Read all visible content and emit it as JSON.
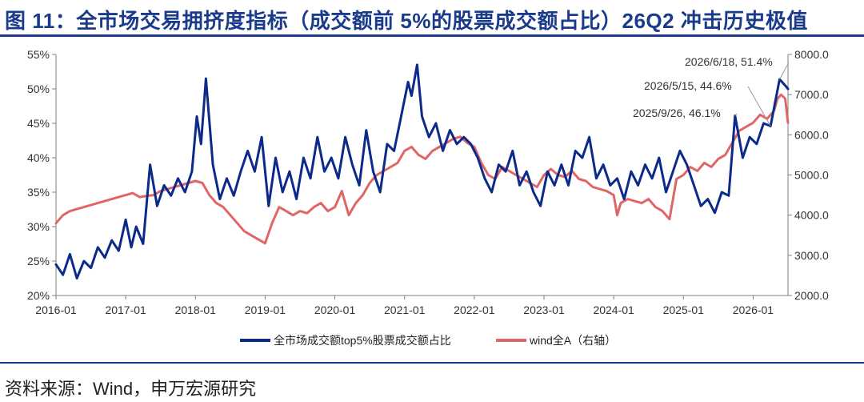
{
  "title": "图 11：全市场交易拥挤度指标（成交额前 5%的股票成交额占比）26Q2 冲击历史极值",
  "source": "资料来源：Wind，申万宏源研究",
  "colors": {
    "accent": "#1a3a8c",
    "series_top5": "#0b2a8a",
    "series_winda": "#e06666",
    "right_axis": "#5b9bd5"
  },
  "chart_data": {
    "type": "line",
    "x_ticks": [
      "2016-01",
      "2017-01",
      "2018-01",
      "2019-01",
      "2020-01",
      "2021-01",
      "2022-01",
      "2023-01",
      "2024-01",
      "2025-01",
      "2026-01"
    ],
    "y_left": {
      "ticks": [
        "20%",
        "25%",
        "30%",
        "35%",
        "40%",
        "45%",
        "50%",
        "55%"
      ],
      "range": [
        20,
        55
      ]
    },
    "y_right": {
      "ticks": [
        "2000.0",
        "3000.0",
        "4000.0",
        "5000.0",
        "6000.0",
        "7000.0",
        "8000.0"
      ],
      "range": [
        2000,
        8000
      ]
    },
    "x_range": [
      2016.0,
      2026.5
    ],
    "series": [
      {
        "name": "全市场成交额top5%股票成交额占比",
        "axis": "left",
        "x": [
          2016.0,
          2016.1,
          2016.2,
          2016.3,
          2016.4,
          2016.5,
          2016.6,
          2016.7,
          2016.8,
          2016.9,
          2017.0,
          2017.08,
          2017.15,
          2017.25,
          2017.35,
          2017.45,
          2017.55,
          2017.65,
          2017.75,
          2017.85,
          2017.95,
          2018.02,
          2018.08,
          2018.15,
          2018.25,
          2018.35,
          2018.45,
          2018.55,
          2018.65,
          2018.75,
          2018.85,
          2018.95,
          2019.05,
          2019.15,
          2019.25,
          2019.35,
          2019.45,
          2019.55,
          2019.65,
          2019.75,
          2019.85,
          2019.95,
          2020.05,
          2020.15,
          2020.25,
          2020.35,
          2020.45,
          2020.55,
          2020.65,
          2020.75,
          2020.85,
          2020.95,
          2021.05,
          2021.1,
          2021.18,
          2021.25,
          2021.35,
          2021.45,
          2021.55,
          2021.65,
          2021.75,
          2021.85,
          2021.95,
          2022.05,
          2022.15,
          2022.25,
          2022.35,
          2022.45,
          2022.55,
          2022.65,
          2022.75,
          2022.85,
          2022.95,
          2023.05,
          2023.15,
          2023.25,
          2023.35,
          2023.45,
          2023.55,
          2023.65,
          2023.75,
          2023.85,
          2023.95,
          2024.05,
          2024.15,
          2024.25,
          2024.35,
          2024.45,
          2024.55,
          2024.65,
          2024.75,
          2024.85,
          2024.95,
          2025.05,
          2025.15,
          2025.25,
          2025.35,
          2025.45,
          2025.55,
          2025.65,
          2025.74,
          2025.85,
          2025.95,
          2026.05,
          2026.15,
          2026.25,
          2026.38,
          2026.46,
          2026.5
        ],
        "y": [
          24.5,
          23.0,
          26.0,
          22.5,
          25.0,
          24.0,
          27.0,
          25.5,
          28.0,
          26.5,
          31.0,
          27.0,
          30.0,
          27.5,
          39.0,
          33.0,
          36.0,
          34.5,
          37.0,
          35.0,
          38.0,
          46.0,
          42.0,
          51.5,
          39.0,
          34.0,
          37.0,
          34.5,
          38.0,
          41.0,
          38.0,
          43.0,
          33.0,
          40.0,
          35.0,
          38.0,
          34.0,
          40.0,
          37.0,
          43.0,
          38.0,
          40.0,
          37.0,
          43.0,
          39.0,
          36.0,
          44.0,
          38.0,
          35.0,
          42.0,
          41.0,
          46.0,
          51.0,
          49.0,
          53.5,
          46.0,
          43.0,
          45.0,
          41.0,
          44.0,
          42.0,
          43.0,
          42.0,
          40.0,
          37.0,
          35.0,
          39.0,
          38.0,
          41.0,
          36.0,
          38.0,
          35.0,
          33.0,
          38.0,
          36.0,
          39.0,
          36.0,
          41.0,
          40.0,
          43.0,
          37.0,
          39.0,
          36.0,
          37.0,
          34.0,
          38.0,
          36.0,
          39.0,
          37.0,
          40.0,
          35.0,
          38.0,
          41.0,
          39.0,
          36.0,
          33.0,
          34.0,
          32.0,
          35.0,
          34.5,
          46.1,
          40.0,
          43.0,
          42.0,
          45.0,
          44.6,
          51.4,
          50.5,
          50.0
        ]
      },
      {
        "name": "wind全A（右轴）",
        "axis": "right",
        "x": [
          2016.0,
          2016.1,
          2016.2,
          2016.3,
          2016.4,
          2016.5,
          2016.6,
          2016.7,
          2016.8,
          2016.9,
          2017.0,
          2017.1,
          2017.2,
          2017.3,
          2017.4,
          2017.5,
          2017.6,
          2017.7,
          2017.8,
          2017.9,
          2018.0,
          2018.1,
          2018.2,
          2018.3,
          2018.4,
          2018.5,
          2018.6,
          2018.7,
          2018.8,
          2018.9,
          2019.0,
          2019.1,
          2019.2,
          2019.3,
          2019.4,
          2019.5,
          2019.6,
          2019.7,
          2019.8,
          2019.9,
          2020.0,
          2020.1,
          2020.2,
          2020.3,
          2020.4,
          2020.5,
          2020.6,
          2020.7,
          2020.8,
          2020.9,
          2021.0,
          2021.1,
          2021.2,
          2021.3,
          2021.4,
          2021.5,
          2021.6,
          2021.7,
          2021.8,
          2021.9,
          2022.0,
          2022.1,
          2022.2,
          2022.3,
          2022.4,
          2022.5,
          2022.6,
          2022.7,
          2022.8,
          2022.9,
          2023.0,
          2023.1,
          2023.2,
          2023.3,
          2023.4,
          2023.5,
          2023.6,
          2023.7,
          2023.8,
          2023.9,
          2024.0,
          2024.05,
          2024.1,
          2024.2,
          2024.3,
          2024.4,
          2024.5,
          2024.6,
          2024.7,
          2024.75,
          2024.8,
          2024.9,
          2025.0,
          2025.1,
          2025.2,
          2025.3,
          2025.4,
          2025.5,
          2025.6,
          2025.7,
          2025.8,
          2025.9,
          2026.0,
          2026.1,
          2026.2,
          2026.3,
          2026.35,
          2026.4,
          2026.46,
          2026.5
        ],
        "y": [
          3800,
          4000,
          4100,
          4150,
          4200,
          4250,
          4300,
          4350,
          4400,
          4450,
          4500,
          4550,
          4450,
          4480,
          4500,
          4600,
          4650,
          4700,
          4750,
          4800,
          4850,
          4800,
          4500,
          4300,
          4200,
          4000,
          3800,
          3600,
          3500,
          3400,
          3300,
          3800,
          4200,
          4100,
          4000,
          4100,
          4050,
          4200,
          4300,
          4100,
          4200,
          4600,
          4000,
          4300,
          4500,
          4800,
          5000,
          5100,
          5200,
          5300,
          5600,
          5700,
          5500,
          5400,
          5600,
          5700,
          5800,
          5900,
          5950,
          5800,
          5700,
          5300,
          5000,
          4900,
          5200,
          5100,
          5000,
          4900,
          4800,
          4700,
          5000,
          5150,
          5000,
          4950,
          5100,
          4900,
          4850,
          4700,
          4650,
          4600,
          4500,
          4000,
          4300,
          4400,
          4350,
          4300,
          4400,
          4200,
          4100,
          4000,
          3900,
          4900,
          5000,
          5200,
          5100,
          5300,
          5200,
          5400,
          5500,
          5800,
          6100,
          6200,
          6300,
          6500,
          6400,
          6600,
          6900,
          7000,
          6900,
          6300
        ]
      }
    ],
    "annotations": [
      {
        "text": "2026/6/18, 51.4%",
        "x": 2026.38,
        "y": 51.4,
        "axis": "left"
      },
      {
        "text": "2026/5/15, 44.6%",
        "x": 2026.25,
        "y": 44.6,
        "axis": "left"
      },
      {
        "text": "2025/9/26, 46.1%",
        "x": 2025.74,
        "y": 46.1,
        "axis": "left"
      }
    ],
    "grid": false,
    "legend": "bottom-center"
  }
}
